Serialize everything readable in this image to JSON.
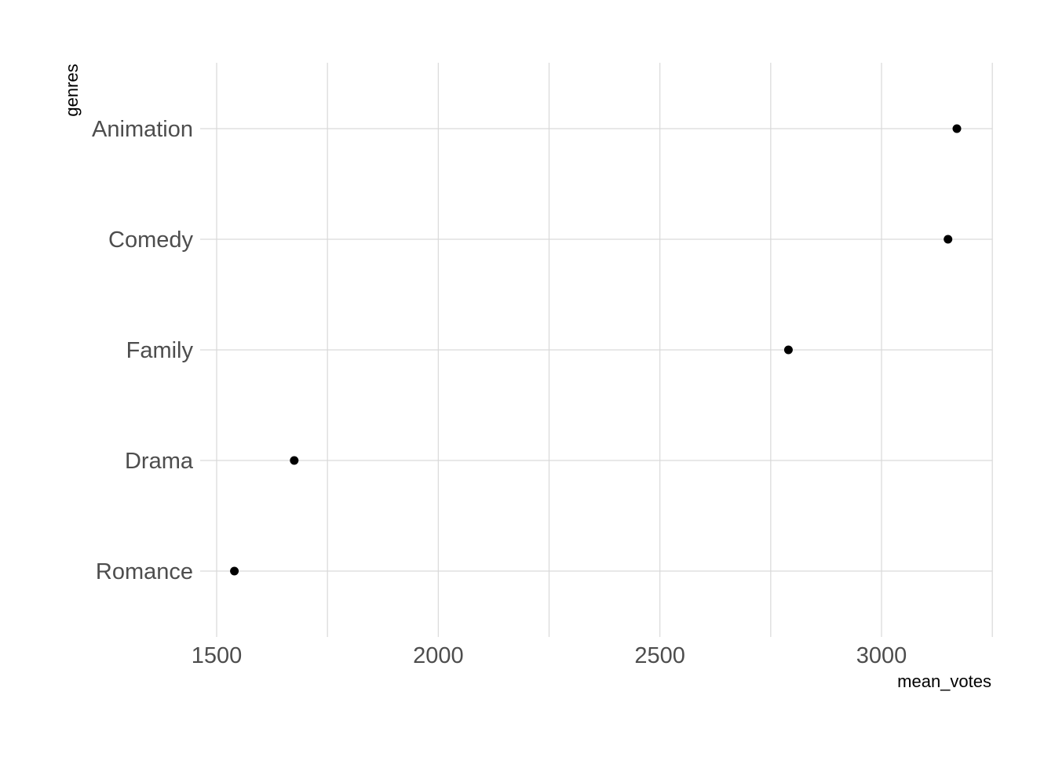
{
  "chart_data": {
    "type": "scatter",
    "xlabel": "mean_votes",
    "ylabel": "genres",
    "categories": [
      "Animation",
      "Comedy",
      "Family",
      "Drama",
      "Romance"
    ],
    "values": [
      3170,
      3150,
      2790,
      1675,
      1540
    ],
    "xlim": [
      1500,
      3250
    ],
    "x_ticks": [
      1500,
      2000,
      2500,
      3000
    ],
    "x_tick_labels": [
      "1500",
      "2000",
      "2500",
      "3000"
    ],
    "x_minor_ticks": [
      1750,
      2250,
      2750,
      3250
    ],
    "grid": true,
    "point_color": "#000000",
    "grid_color": "#d9d9d9",
    "tick_label_color": "#4d4d4d"
  }
}
